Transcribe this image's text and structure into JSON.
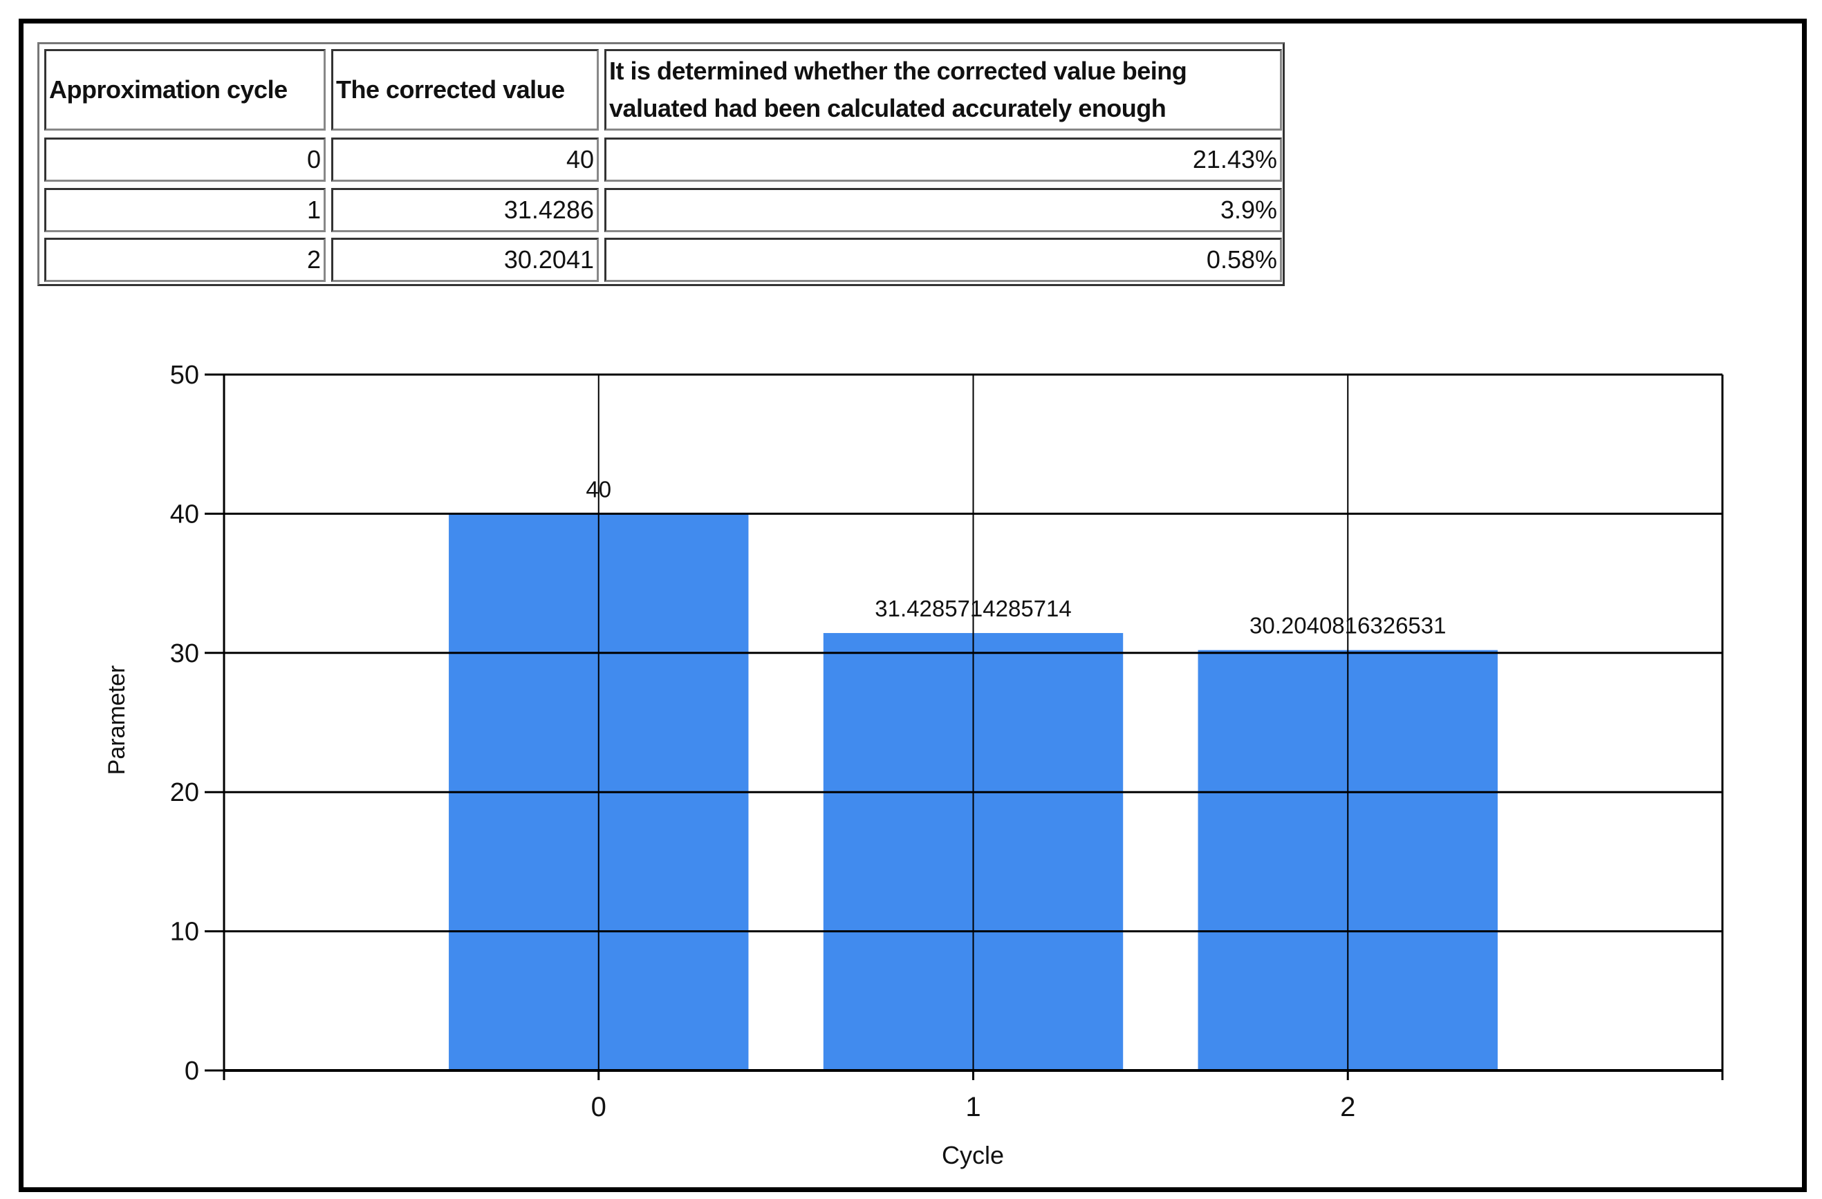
{
  "table": {
    "headers": [
      "Approximation cycle",
      "The corrected value",
      "It is determined whether the corrected value being valuated had been calculated accurately enough"
    ],
    "rows": [
      [
        "0",
        "40",
        "21.43%"
      ],
      [
        "1",
        "31.4286",
        "3.9%"
      ],
      [
        "2",
        "30.2041",
        "0.58%"
      ]
    ]
  },
  "chart_data": {
    "type": "bar",
    "categories": [
      "0",
      "1",
      "2"
    ],
    "x": [
      0,
      1,
      2
    ],
    "values": [
      40,
      31.4285714285714,
      30.2040816326531
    ],
    "data_labels": [
      "40",
      "31.4285714285714",
      "30.2040816326531"
    ],
    "title": "",
    "xlabel": "Cycle",
    "ylabel": "Parameter",
    "xlim": [
      -1,
      3
    ],
    "ylim": [
      0,
      50
    ],
    "yticks": [
      "0",
      "10",
      "20",
      "30",
      "40",
      "50"
    ],
    "grid": true,
    "legend": "none",
    "bar_color": "#418BEE"
  }
}
